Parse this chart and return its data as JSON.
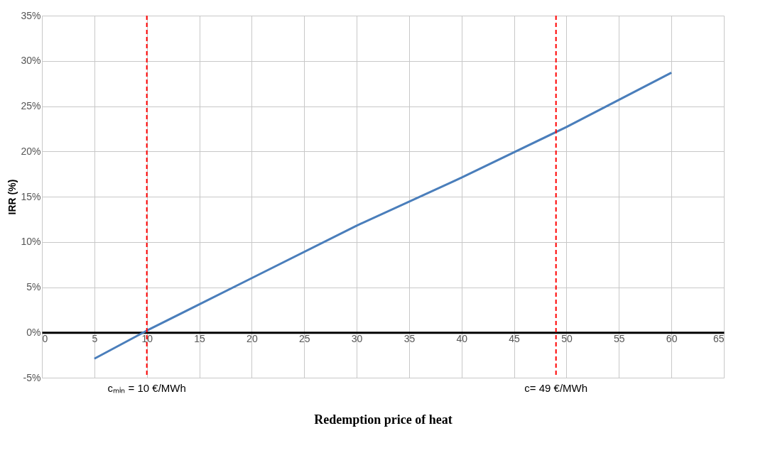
{
  "chart_data": {
    "type": "line",
    "xlabel": "Redemption price of heat",
    "ylabel": "IRR (%)",
    "x": [
      5,
      10,
      20,
      30,
      40,
      50,
      60
    ],
    "series": [
      {
        "color": "#4a7ebb",
        "values": [
          -2.9,
          0.2,
          6.0,
          11.8,
          17.1,
          22.7,
          28.7
        ]
      }
    ],
    "xlim": [
      0,
      65
    ],
    "xticks": [
      0,
      5,
      10,
      15,
      20,
      25,
      30,
      35,
      40,
      45,
      50,
      55,
      60,
      65
    ],
    "ylim": [
      -5,
      35
    ],
    "yticks": [
      {
        "value": -5,
        "label": "-5%"
      },
      {
        "value": 0,
        "label": "0%"
      },
      {
        "value": 5,
        "label": "5%"
      },
      {
        "value": 10,
        "label": "10%"
      },
      {
        "value": 15,
        "label": "15%"
      },
      {
        "value": 20,
        "label": "20%"
      },
      {
        "value": 25,
        "label": "25%"
      },
      {
        "value": 30,
        "label": "30%"
      },
      {
        "value": 35,
        "label": "35%"
      }
    ],
    "ref_lines": [
      {
        "axis": "x",
        "value": 10,
        "label": "cₘᵢₙ = 10 €/MWh",
        "color": "#ff0000",
        "line_style": "dashed"
      },
      {
        "axis": "x",
        "value": 49,
        "label": "c= 49 €/MWh",
        "color": "#ff0000",
        "line_style": "dashed"
      }
    ],
    "grid": true,
    "legend": false,
    "marker": "none",
    "line_style": "solid"
  }
}
